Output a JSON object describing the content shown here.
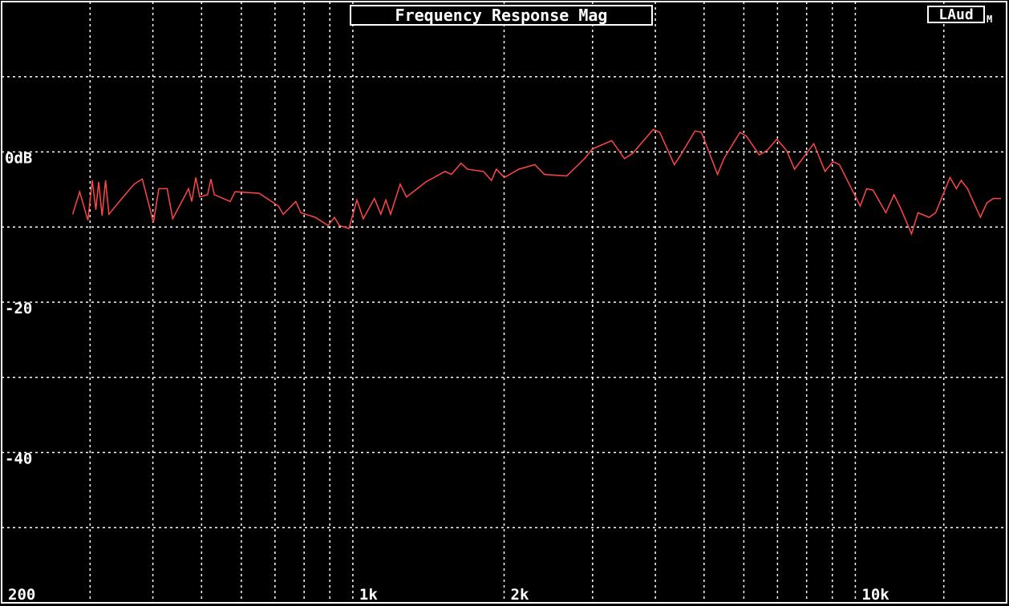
{
  "chart_data": {
    "type": "line",
    "title": "Frequency Response Mag",
    "badge": "LAud",
    "badge_subscript": "M",
    "xscale": "log",
    "grid": true,
    "xlim": [
      200,
      20000
    ],
    "xticks": [
      200,
      {
        "value": 1000,
        "label": "1k"
      },
      {
        "value": 2000,
        "label": "2k"
      },
      {
        "value": 10000,
        "label": "10k"
      }
    ],
    "x_minor_ticks": [
      300,
      400,
      500,
      600,
      700,
      800,
      900,
      3000,
      4000,
      5000,
      6000,
      7000,
      8000,
      9000,
      15000
    ],
    "ylim": [
      -60,
      20
    ],
    "yticks": [
      {
        "value": 0,
        "label": "0dB"
      },
      -20,
      -40
    ],
    "y_minor_ticks": [
      10,
      -10,
      -30,
      -50
    ],
    "x": [
      277,
      286,
      297,
      303,
      308,
      312,
      317,
      322,
      327,
      347,
      367,
      381,
      401,
      411,
      427,
      438,
      471,
      478,
      487,
      496,
      514,
      522,
      530,
      570,
      583,
      651,
      711,
      727,
      770,
      788,
      842,
      893,
      919,
      940,
      982,
      1019,
      1049,
      1104,
      1137,
      1163,
      1189,
      1242,
      1279,
      1397,
      1526,
      1571,
      1642,
      1691,
      1820,
      1888,
      1930,
      2002,
      2140,
      2302,
      2406,
      2666,
      2891,
      2998,
      3276,
      3472,
      3602,
      3964,
      4082,
      4362,
      4492,
      4798,
      4942,
      5318,
      5477,
      5894,
      6070,
      6439,
      6678,
      6980,
      7294,
      7567,
      8266,
      8702,
      9029,
      9298,
      10228,
      10532,
      10847,
      11503,
      11936,
      12290,
      12940,
      13325,
      14028,
      14447,
      15431,
      15887,
      16241,
      16724,
      17734,
      18264,
      18810,
      19497
    ],
    "series": [
      {
        "color": "#ff4646",
        "values": [
          -8.3,
          -5.3,
          -9.1,
          -3.8,
          -7.7,
          -4.0,
          -8.5,
          -3.8,
          -8.3,
          -6.2,
          -4.3,
          -3.6,
          -9.4,
          -4.9,
          -4.9,
          -8.9,
          -4.9,
          -6.6,
          -3.4,
          -6.0,
          -5.7,
          -3.6,
          -5.7,
          -6.6,
          -5.3,
          -5.5,
          -7.2,
          -8.3,
          -6.6,
          -8.1,
          -8.7,
          -9.8,
          -8.7,
          -9.8,
          -10.2,
          -6.4,
          -8.9,
          -6.2,
          -8.3,
          -6.4,
          -8.3,
          -4.3,
          -6.0,
          -4.0,
          -2.6,
          -3.0,
          -1.5,
          -2.3,
          -2.6,
          -3.8,
          -2.3,
          -3.4,
          -2.3,
          -1.7,
          -3.0,
          -3.2,
          -0.9,
          0.4,
          1.5,
          -0.9,
          -0.2,
          3.0,
          2.6,
          -1.7,
          -0.4,
          2.8,
          2.6,
          -3.0,
          -0.9,
          2.6,
          2.1,
          -0.4,
          0.2,
          1.7,
          0.2,
          -2.3,
          1.1,
          -2.6,
          -1.3,
          -1.7,
          -7.2,
          -4.9,
          -5.1,
          -8.1,
          -5.7,
          -7.4,
          -10.9,
          -8.1,
          -8.7,
          -8.1,
          -3.4,
          -4.9,
          -3.8,
          -4.9,
          -8.7,
          -6.8,
          -6.2,
          -6.2
        ]
      }
    ]
  }
}
